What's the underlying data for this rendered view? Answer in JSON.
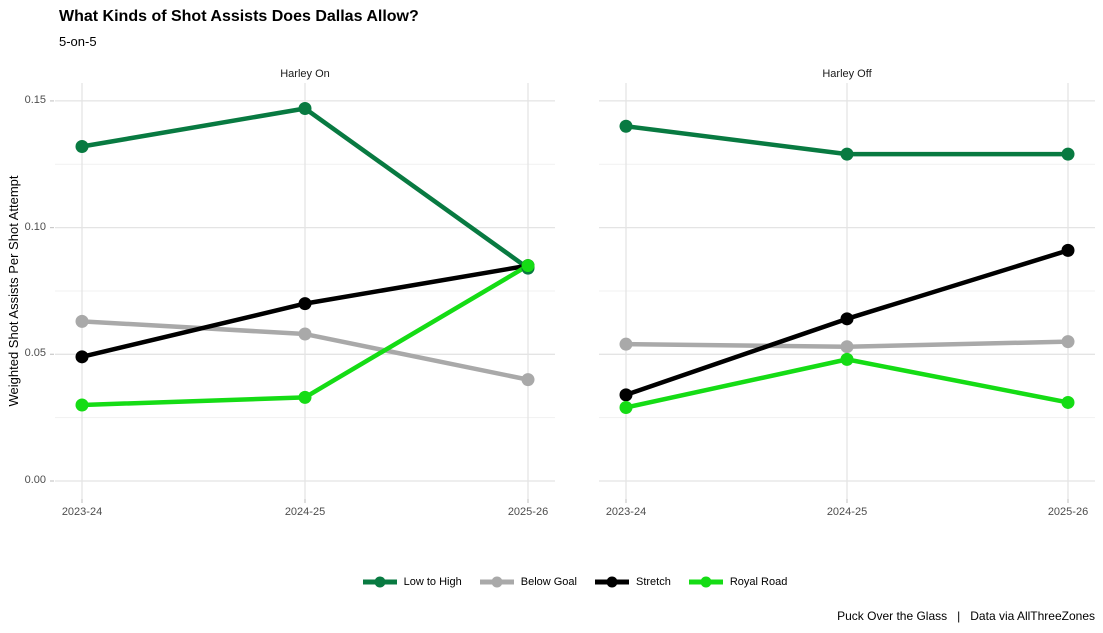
{
  "chart_data": {
    "type": "line",
    "title": "What Kinds of Shot Assists Does Dallas Allow?",
    "subtitle": "5-on-5",
    "ylabel": "Weighted Shot Assists Per Shot Attempt",
    "caption": "Puck Over the Glass   |   Data via AllThreeZones",
    "categories": [
      "2023-24",
      "2024-25",
      "2025-26"
    ],
    "yticks": [
      "0.00",
      "0.05",
      "0.10",
      "0.15"
    ],
    "ytick_values": [
      0,
      0.05,
      0.1,
      0.15
    ],
    "yminor_values": [
      0.025,
      0.075,
      0.125
    ],
    "ylim": [
      0,
      0.1575
    ],
    "grid": "major+minor",
    "legend_position": "bottom",
    "legend": [
      {
        "label": "Low to High",
        "color": "#087A41"
      },
      {
        "label": "Below Goal",
        "color": "#A9A9A9"
      },
      {
        "label": "Stretch",
        "color": "#000000"
      },
      {
        "label": "Royal Road",
        "color": "#15DC15"
      }
    ],
    "facets": [
      {
        "title": "Harley On",
        "series": [
          {
            "name": "Low to High",
            "values": [
              0.132,
              0.147,
              0.084
            ]
          },
          {
            "name": "Below Goal",
            "values": [
              0.063,
              0.058,
              0.04
            ]
          },
          {
            "name": "Stretch",
            "values": [
              0.049,
              0.07,
              0.085
            ]
          },
          {
            "name": "Royal Road",
            "values": [
              0.03,
              0.033,
              0.085
            ]
          }
        ]
      },
      {
        "title": "Harley Off",
        "series": [
          {
            "name": "Low to High",
            "values": [
              0.14,
              0.129,
              0.129
            ]
          },
          {
            "name": "Below Goal",
            "values": [
              0.054,
              0.053,
              0.055
            ]
          },
          {
            "name": "Stretch",
            "values": [
              0.034,
              0.064,
              0.091
            ]
          },
          {
            "name": "Royal Road",
            "values": [
              0.029,
              0.048,
              0.031
            ]
          }
        ]
      }
    ]
  }
}
